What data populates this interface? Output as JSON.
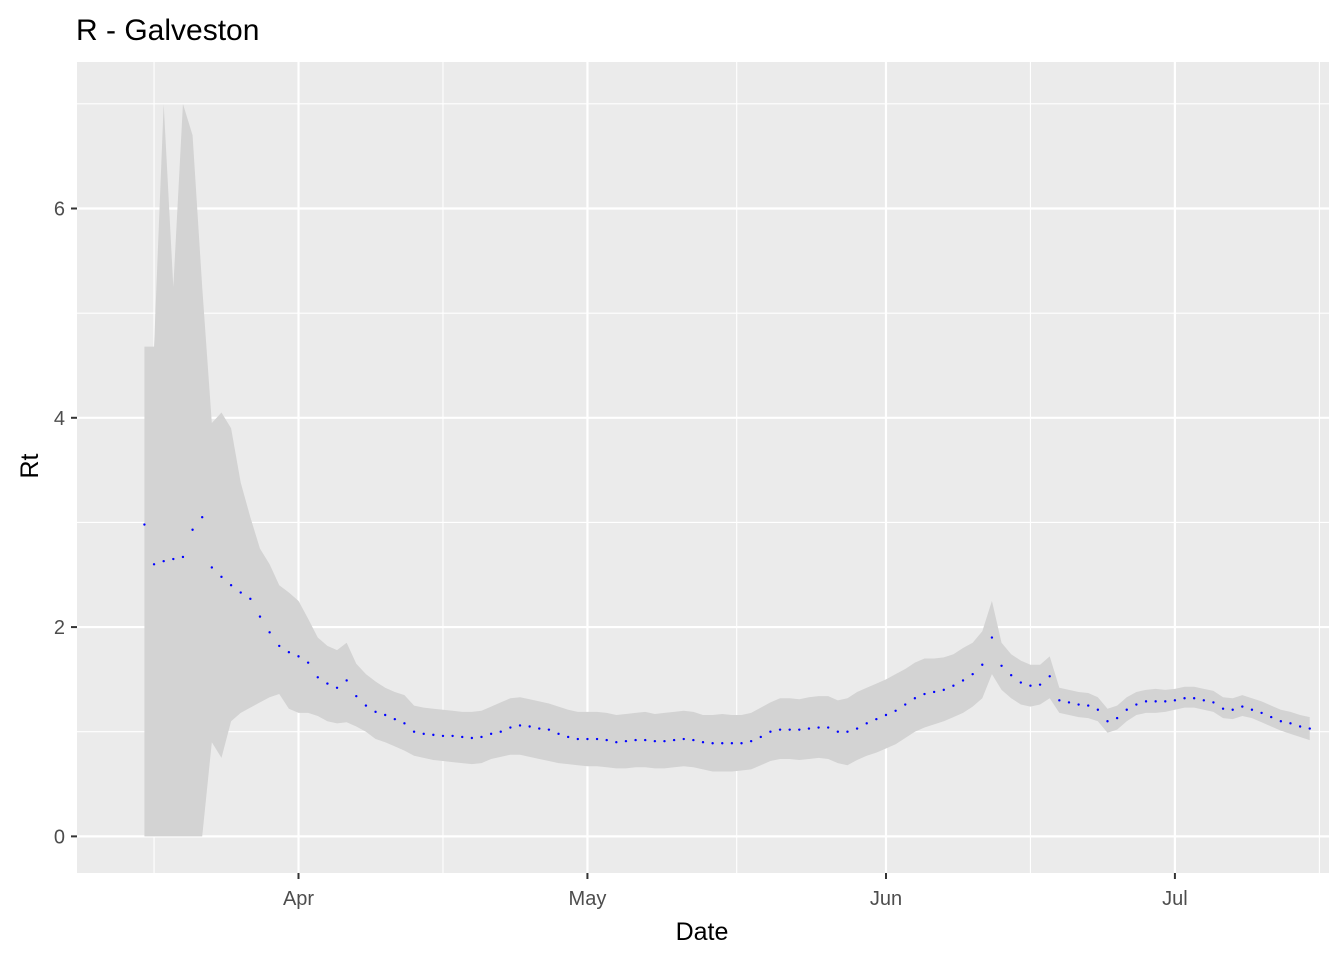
{
  "chart_data": {
    "type": "line",
    "title": "R - Galveston",
    "xlabel": "Date",
    "ylabel": "Rt",
    "xlim": [
      "2020-03-09",
      "2020-07-17"
    ],
    "ylim": [
      -0.35,
      7.4
    ],
    "x_ticks": [
      {
        "date": "2020-04-01",
        "label": "Apr"
      },
      {
        "date": "2020-05-01",
        "label": "May"
      },
      {
        "date": "2020-06-01",
        "label": "Jun"
      },
      {
        "date": "2020-07-01",
        "label": "Jul"
      }
    ],
    "y_ticks": [
      {
        "value": 0,
        "label": "0"
      },
      {
        "value": 2,
        "label": "2"
      },
      {
        "value": 4,
        "label": "4"
      },
      {
        "value": 6,
        "label": "6"
      }
    ],
    "grid": true,
    "legend": "none",
    "colors": {
      "panel_background": "#ebebeb",
      "grid_line": "#ffffff",
      "ribbon": "#d3d3d3",
      "series_point": "#0000ff",
      "tick_mark": "#333333",
      "tick_label": "#4d4d4d"
    },
    "series": [
      {
        "start_date": "2020-03-16",
        "values": [
          2.98,
          2.6,
          2.63,
          2.65,
          2.67,
          2.93,
          3.05,
          2.57,
          2.48,
          2.4,
          2.33,
          2.27,
          2.1,
          1.95,
          1.82,
          1.76,
          1.72,
          1.66,
          1.52,
          1.46,
          1.42,
          1.49,
          1.34,
          1.25,
          1.19,
          1.16,
          1.12,
          1.08,
          1.0,
          0.98,
          0.97,
          0.96,
          0.96,
          0.95,
          0.94,
          0.95,
          0.98,
          1.0,
          1.04,
          1.06,
          1.05,
          1.03,
          1.02,
          0.98,
          0.95,
          0.93,
          0.93,
          0.93,
          0.92,
          0.9,
          0.91,
          0.92,
          0.92,
          0.91,
          0.91,
          0.92,
          0.93,
          0.92,
          0.9,
          0.89,
          0.89,
          0.89,
          0.89,
          0.91,
          0.95,
          1.0,
          1.02,
          1.02,
          1.02,
          1.03,
          1.04,
          1.04,
          1.0,
          1.0,
          1.03,
          1.08,
          1.12,
          1.16,
          1.2,
          1.26,
          1.32,
          1.36,
          1.38,
          1.4,
          1.44,
          1.49,
          1.55,
          1.64,
          1.9,
          1.63,
          1.54,
          1.47,
          1.44,
          1.45,
          1.53,
          1.3,
          1.28,
          1.26,
          1.25,
          1.21,
          1.1,
          1.13,
          1.21,
          1.26,
          1.29,
          1.29,
          1.29,
          1.3,
          1.32,
          1.32,
          1.3,
          1.28,
          1.22,
          1.21,
          1.24,
          1.21,
          1.18,
          1.14,
          1.1,
          1.08,
          1.05,
          1.03
        ],
        "lower": [
          0.0,
          0.0,
          0.0,
          0.0,
          0.0,
          0.0,
          0.0,
          0.9,
          0.75,
          1.1,
          1.18,
          1.23,
          1.28,
          1.33,
          1.36,
          1.22,
          1.18,
          1.18,
          1.15,
          1.1,
          1.08,
          1.09,
          1.05,
          1.0,
          0.93,
          0.9,
          0.86,
          0.82,
          0.77,
          0.75,
          0.73,
          0.72,
          0.71,
          0.7,
          0.69,
          0.7,
          0.74,
          0.76,
          0.78,
          0.78,
          0.76,
          0.74,
          0.72,
          0.7,
          0.69,
          0.68,
          0.67,
          0.67,
          0.66,
          0.65,
          0.65,
          0.66,
          0.66,
          0.65,
          0.65,
          0.66,
          0.67,
          0.66,
          0.64,
          0.62,
          0.62,
          0.62,
          0.63,
          0.64,
          0.68,
          0.72,
          0.74,
          0.74,
          0.73,
          0.74,
          0.75,
          0.74,
          0.7,
          0.68,
          0.73,
          0.77,
          0.8,
          0.84,
          0.88,
          0.94,
          1.0,
          1.04,
          1.07,
          1.1,
          1.14,
          1.18,
          1.24,
          1.32,
          1.55,
          1.4,
          1.32,
          1.26,
          1.24,
          1.26,
          1.32,
          1.18,
          1.16,
          1.14,
          1.13,
          1.1,
          0.99,
          1.02,
          1.1,
          1.16,
          1.18,
          1.18,
          1.19,
          1.21,
          1.23,
          1.23,
          1.21,
          1.19,
          1.13,
          1.12,
          1.15,
          1.13,
          1.09,
          1.05,
          1.01,
          0.98,
          0.95,
          0.92
        ],
        "upper": [
          4.68,
          4.68,
          7.0,
          5.25,
          7.0,
          6.7,
          5.25,
          3.95,
          4.05,
          3.9,
          3.38,
          3.05,
          2.75,
          2.6,
          2.4,
          2.33,
          2.25,
          2.08,
          1.9,
          1.82,
          1.78,
          1.85,
          1.65,
          1.55,
          1.48,
          1.42,
          1.38,
          1.35,
          1.25,
          1.23,
          1.22,
          1.21,
          1.2,
          1.19,
          1.19,
          1.2,
          1.24,
          1.28,
          1.32,
          1.33,
          1.31,
          1.29,
          1.27,
          1.24,
          1.21,
          1.19,
          1.19,
          1.19,
          1.18,
          1.16,
          1.17,
          1.18,
          1.19,
          1.17,
          1.18,
          1.19,
          1.2,
          1.19,
          1.16,
          1.16,
          1.17,
          1.16,
          1.16,
          1.18,
          1.23,
          1.28,
          1.32,
          1.32,
          1.31,
          1.33,
          1.34,
          1.34,
          1.3,
          1.32,
          1.38,
          1.42,
          1.46,
          1.5,
          1.55,
          1.6,
          1.66,
          1.7,
          1.7,
          1.71,
          1.74,
          1.8,
          1.85,
          1.96,
          2.25,
          1.85,
          1.74,
          1.68,
          1.64,
          1.64,
          1.72,
          1.42,
          1.4,
          1.38,
          1.37,
          1.33,
          1.22,
          1.25,
          1.33,
          1.38,
          1.4,
          1.41,
          1.4,
          1.41,
          1.43,
          1.43,
          1.41,
          1.39,
          1.33,
          1.32,
          1.35,
          1.32,
          1.29,
          1.25,
          1.21,
          1.19,
          1.16,
          1.14
        ]
      }
    ]
  }
}
